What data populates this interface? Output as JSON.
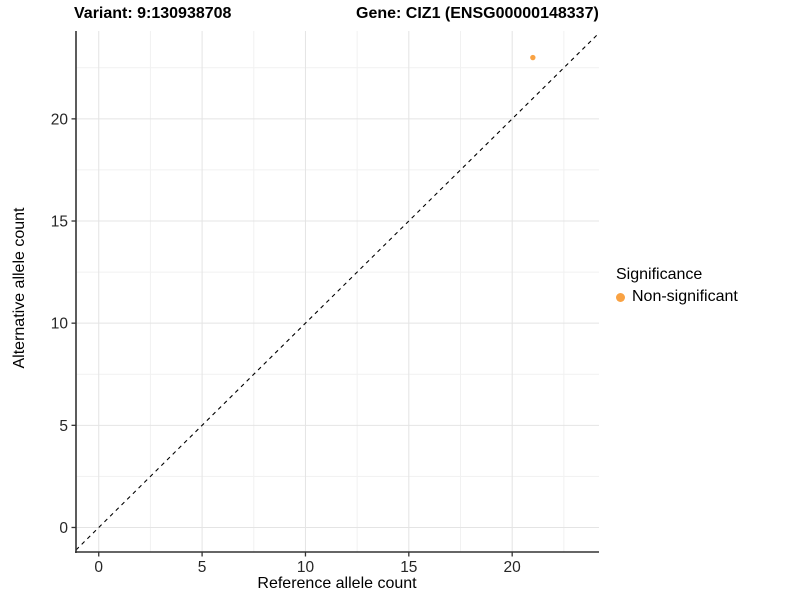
{
  "titles": {
    "variant": "Variant: 9:130938708",
    "gene": "Gene: CIZ1 (ENSG00000148337)"
  },
  "axes": {
    "x_label": "Reference allele count",
    "y_label": "Alternative allele count"
  },
  "legend": {
    "title": "Significance",
    "items": [
      {
        "label": "Non-significant",
        "color": "#F9A243"
      }
    ]
  },
  "colors": {
    "background": "#ffffff",
    "grid_major": "#E4E4E4",
    "grid_minor": "#F1F1F1",
    "axis_line": "#333333",
    "tick_label": "#262626",
    "point": "#F9A243",
    "reference_line": "#000000"
  },
  "chart_data": {
    "type": "scatter",
    "title": "Variant: 9:130938708   Gene: CIZ1 (ENSG00000148337)",
    "xlabel": "Reference allele count",
    "ylabel": "Alternative allele count",
    "xlim": [
      -1.1,
      24.2
    ],
    "ylim": [
      -1.2,
      24.3
    ],
    "x_ticks": [
      0,
      5,
      10,
      15,
      20
    ],
    "y_ticks": [
      0,
      5,
      10,
      15,
      20
    ],
    "x_minor_ticks": [
      2.5,
      7.5,
      12.5,
      17.5,
      22.5
    ],
    "y_minor_ticks": [
      2.5,
      7.5,
      12.5,
      17.5,
      22.5
    ],
    "grid": true,
    "legend_position": "right",
    "series": [
      {
        "name": "Non-significant",
        "color": "#F9A243",
        "points": [
          {
            "x": 21,
            "y": 23
          }
        ]
      }
    ],
    "reference_line": {
      "slope": 1,
      "intercept": 0,
      "style": "dashed",
      "color": "#000000"
    }
  }
}
